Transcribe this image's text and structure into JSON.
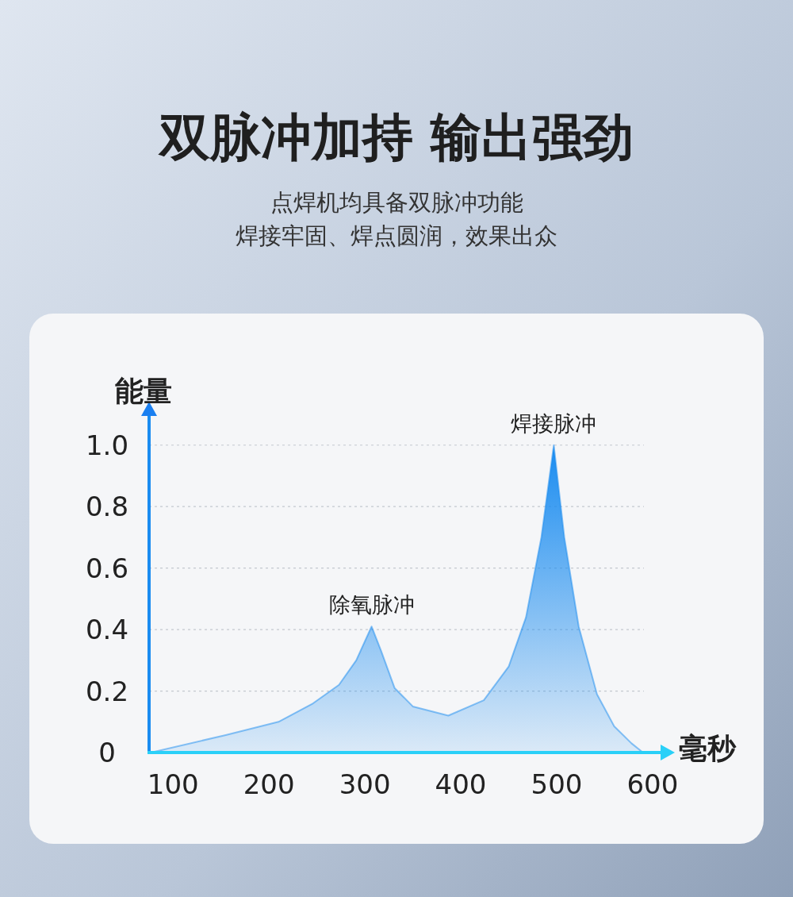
{
  "chart_data": {
    "type": "area",
    "title": "双脉冲加持 输出强劲",
    "subtitle": [
      "点焊机均具备双脉冲功能",
      "焊接牢固、焊点圆润，效果出众"
    ],
    "xlabel": "毫秒",
    "ylabel": "能量",
    "x": [
      77,
      155,
      210,
      246,
      273,
      291,
      307,
      317,
      331,
      350,
      387,
      424,
      450,
      468,
      484,
      497,
      508,
      523,
      542,
      560,
      578,
      590
    ],
    "series": [
      {
        "color": "#1a8cf0",
        "values": [
          0,
          0.057,
          0.1,
          0.16,
          0.22,
          0.3,
          0.41,
          0.33,
          0.21,
          0.15,
          0.12,
          0.17,
          0.28,
          0.44,
          0.7,
          1.0,
          0.7,
          0.41,
          0.19,
          0.085,
          0.03,
          0
        ]
      }
    ],
    "xlim": [
      75,
      610
    ],
    "ylim": [
      0,
      1.1
    ],
    "xticks": [
      100,
      200,
      300,
      400,
      500,
      600
    ],
    "yticks": [
      0,
      0.2,
      0.4,
      0.6,
      0.8,
      {
        "value": 1,
        "label": "1.0"
      }
    ],
    "grid": "y",
    "annotations": [
      {
        "text": "除氧脉冲",
        "x": 307,
        "y": 0.41
      },
      {
        "text": "焊接脉冲",
        "x": 497,
        "y": 1.0
      }
    ]
  }
}
